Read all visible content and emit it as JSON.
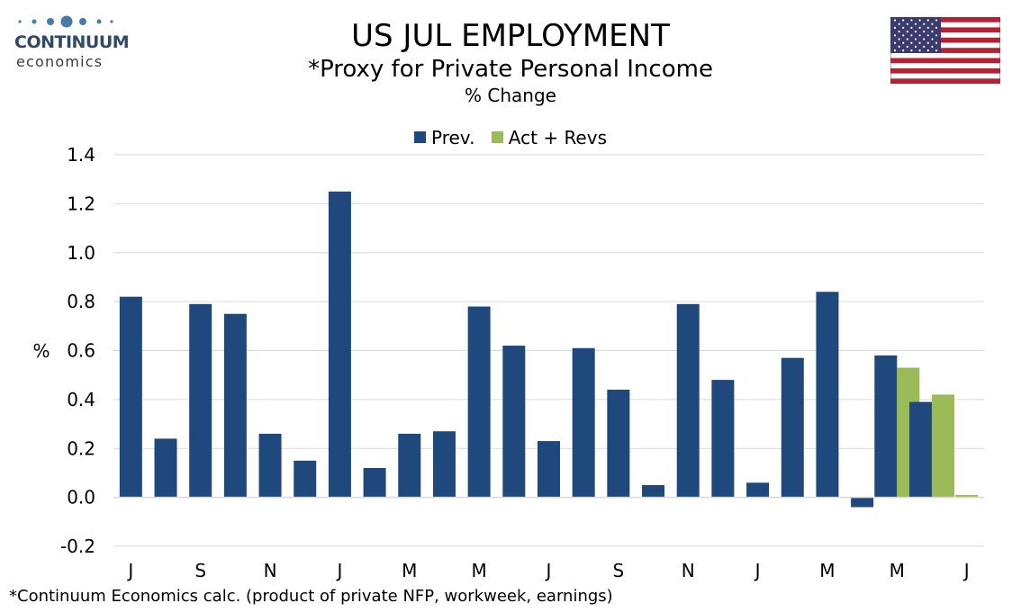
{
  "logo": {
    "line1": "CONTINUUM",
    "line2": "economics"
  },
  "header": {
    "title": "US JUL EMPLOYMENT",
    "subtitle": "*Proxy for Private Personal Income",
    "subsubtitle": "% Change"
  },
  "footnote": "*Continuum Economics calc. (product of private NFP, workweek, earnings)",
  "icons": {
    "flag": "us-flag-icon",
    "logo": "continuum-logo-icon"
  },
  "colors": {
    "prev": "#1f497d",
    "act": "#9bbb59",
    "grid": "#d9d9d9"
  },
  "chart_data": {
    "type": "bar",
    "ylabel": "%",
    "ylim": [
      -0.2,
      1.4
    ],
    "yticks": [
      "1.4",
      "1.2",
      "1.0",
      "0.8",
      "0.6",
      "0.4",
      "0.2",
      "0.0",
      "-0.2"
    ],
    "ytick_values": [
      1.4,
      1.2,
      1.0,
      0.8,
      0.6,
      0.4,
      0.2,
      0.0,
      -0.2
    ],
    "xticks": [
      "J",
      "S",
      "N",
      "J",
      "M",
      "M",
      "J",
      "S",
      "N",
      "J",
      "M",
      "M",
      "J"
    ],
    "grid": true,
    "legend_position": "top-center",
    "series": [
      {
        "name": "Prev.",
        "values": [
          0.82,
          0.24,
          0.79,
          0.75,
          0.26,
          0.15,
          1.25,
          0.12,
          0.26,
          0.27,
          0.78,
          0.62,
          0.23,
          0.61,
          0.44,
          0.05,
          0.79,
          0.48,
          0.06,
          0.57,
          0.84,
          -0.04,
          0.58,
          0.39,
          null
        ]
      },
      {
        "name": "Act + Revs",
        "values": [
          null,
          null,
          null,
          null,
          null,
          null,
          null,
          null,
          null,
          null,
          null,
          null,
          null,
          null,
          null,
          null,
          null,
          null,
          null,
          null,
          null,
          null,
          0.53,
          0.42,
          0.01
        ]
      }
    ]
  }
}
